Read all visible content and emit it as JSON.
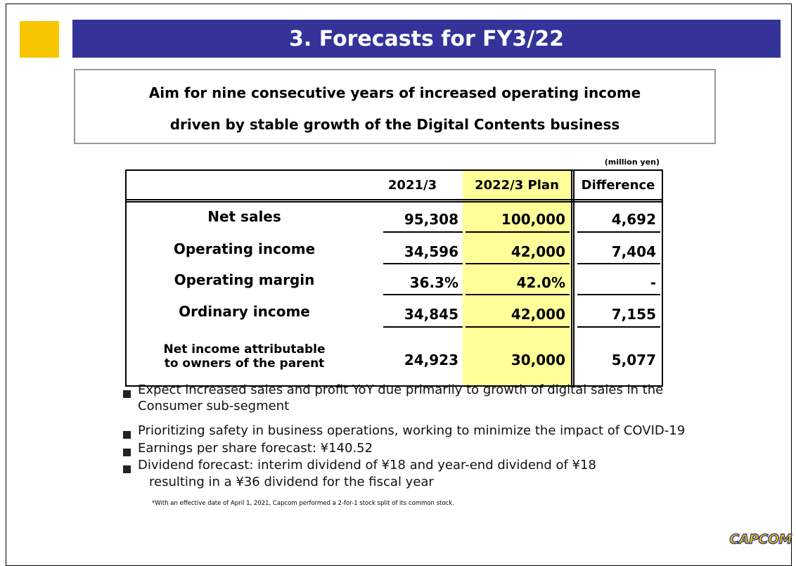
{
  "header": {
    "title": "3. Forecasts for FY3/22"
  },
  "subtitle": [
    "Aim for nine consecutive years of increased operating income",
    "driven by stable growth of the Digital Contents business"
  ],
  "table": {
    "unit": "(million yen)",
    "columns": [
      "2021/3",
      "2022/3 Plan",
      "Difference"
    ],
    "rows": [
      {
        "label": "Net sales",
        "values": [
          "95,308",
          "100,000",
          "4,692"
        ]
      },
      {
        "label": "Operating income",
        "values": [
          "34,596",
          "42,000",
          "7,404"
        ]
      },
      {
        "label": "Operating margin",
        "values": [
          "36.3%",
          "42.0%",
          "-"
        ]
      },
      {
        "label": "Ordinary income",
        "values": [
          "34,845",
          "42,000",
          "7,155"
        ]
      },
      {
        "label": "Net income attributable to owners of the parent",
        "values": [
          "24,923",
          "30,000",
          "5,077"
        ]
      }
    ]
  },
  "bullets": [
    [
      "Expect increased sales and profit YoY due primarily to growth of digital sales in the",
      "Consumer sub-segment"
    ],
    [
      "Prioritizing safety in business operations, working to minimize the impact of COVID-19"
    ],
    [
      "Earnings per share forecast: ¥140.52"
    ],
    [
      "Dividend forecast: interim dividend of ¥18 and year-end dividend of ¥18",
      "resulting in a ¥36 dividend for the fiscal year"
    ]
  ],
  "footnote": "*With an effective date of April 1, 2021, Capcom performed a 2-for-1 stock split of its common stock.",
  "logo": "CAPCOM"
}
